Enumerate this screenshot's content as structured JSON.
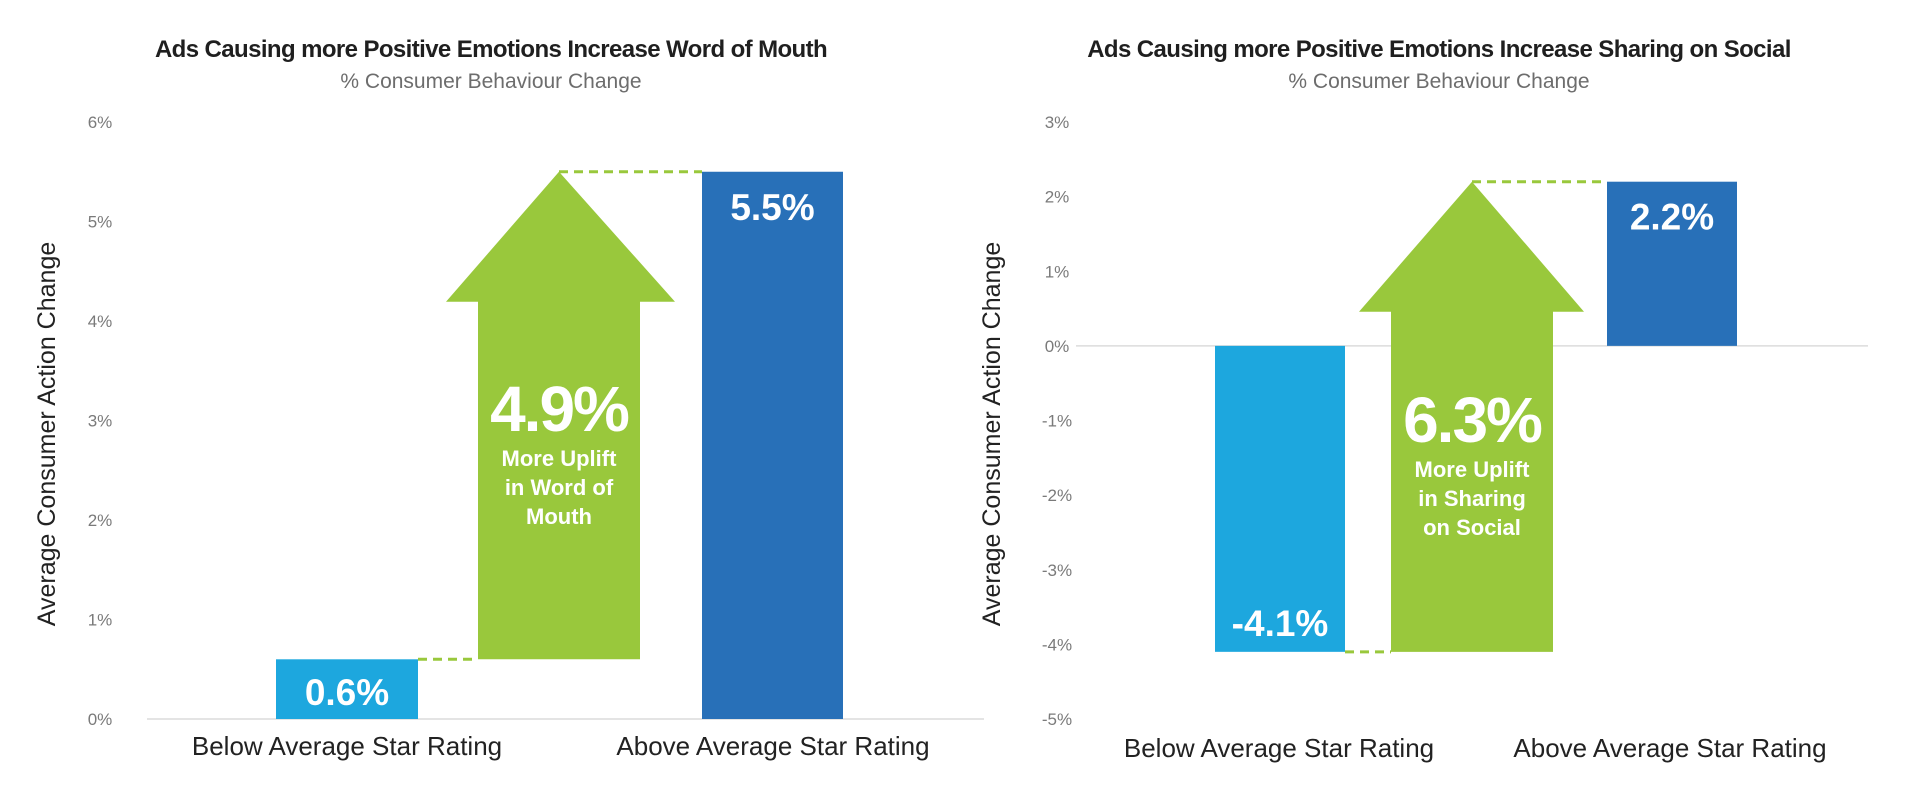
{
  "chart_data": [
    {
      "type": "bar",
      "title": "Ads Causing more Positive Emotions Increase Word of Mouth",
      "subtitle": "% Consumer Behaviour Change",
      "ylabel": "Average Consumer Action Change",
      "xlabel": "",
      "ylim": [
        0,
        6
      ],
      "yticks": [
        "0%",
        "1%",
        "2%",
        "3%",
        "4%",
        "5%",
        "6%"
      ],
      "ytick_values": [
        0,
        1,
        2,
        3,
        4,
        5,
        6
      ],
      "categories": [
        "Below Average Star Rating",
        "Above Average Star Rating"
      ],
      "values": [
        0.6,
        5.5
      ],
      "value_labels": [
        "0.6%",
        "5.5%"
      ],
      "bar_colors": [
        "#1da7de",
        "#2870b8"
      ],
      "grid": false,
      "annotation": {
        "type": "up-arrow",
        "from": 0.6,
        "to": 5.5,
        "value_label": "4.9%",
        "text": [
          "More Uplift",
          "in Word of",
          "Mouth"
        ],
        "color": "#99c83c"
      }
    },
    {
      "type": "bar",
      "title": "Ads Causing more Positive Emotions Increase Sharing on Social",
      "subtitle": "% Consumer Behaviour Change",
      "ylabel": "Average Consumer Action Change",
      "xlabel": "",
      "ylim": [
        -5,
        3
      ],
      "yticks": [
        "-5%",
        "-4%",
        "-3%",
        "-2%",
        "-1%",
        "0%",
        "1%",
        "2%",
        "3%"
      ],
      "ytick_values": [
        -5,
        -4,
        -3,
        -2,
        -1,
        0,
        1,
        2,
        3
      ],
      "categories": [
        "Below Average Star Rating",
        "Above Average Star Rating"
      ],
      "values": [
        -4.1,
        2.2
      ],
      "value_labels": [
        "-4.1%",
        "2.2%"
      ],
      "bar_colors": [
        "#1da7de",
        "#2870b8"
      ],
      "grid": false,
      "annotation": {
        "type": "up-arrow",
        "from": -4.1,
        "to": 2.2,
        "value_label": "6.3%",
        "text": [
          "More Uplift",
          "in Sharing",
          "on Social"
        ],
        "color": "#99c83c"
      }
    }
  ]
}
